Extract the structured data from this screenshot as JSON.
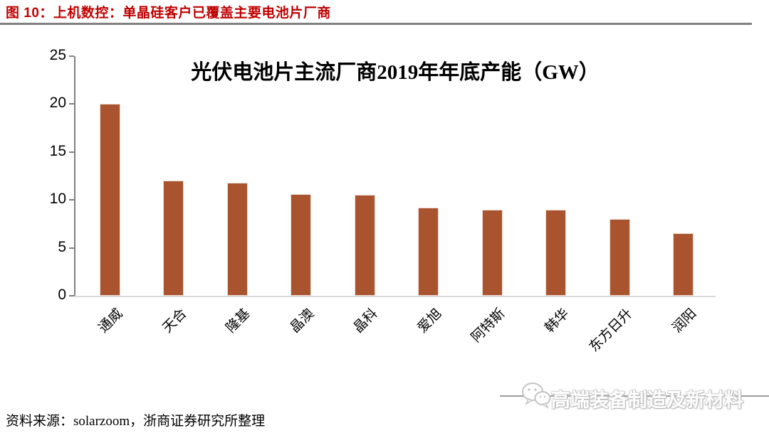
{
  "figure": {
    "caption": "图 10：上机数控：单晶硅客户已覆盖主要电池片厂商",
    "source_line": "资料来源：solarzoom，浙商证券研究所整理"
  },
  "watermark": {
    "icon": "wechat-icon",
    "text": "高端装备制造及新材料"
  },
  "colors": {
    "caption_red": "#C00000",
    "divider_gray": "#808080",
    "axis_gray": "#808080",
    "baseline_gray": "#D9D9D9",
    "bar_fill": "#A9532F"
  },
  "chart_data": {
    "type": "bar",
    "title": "光伏电池片主流厂商2019年年底产能（GW）",
    "categories": [
      "通威",
      "天合",
      "隆基",
      "晶澳",
      "晶科",
      "爱旭",
      "阿特斯",
      "韩华",
      "东方日升",
      "润阳"
    ],
    "values": [
      20,
      12,
      11.8,
      10.6,
      10.5,
      9.2,
      9.0,
      9.0,
      8.0,
      6.5
    ],
    "xlabel": "",
    "ylabel": "",
    "ylim": [
      0,
      25
    ],
    "yticks": [
      0,
      5,
      10,
      15,
      20,
      25
    ],
    "grid": false,
    "legend": null,
    "x_label_rotation_deg": 45
  }
}
